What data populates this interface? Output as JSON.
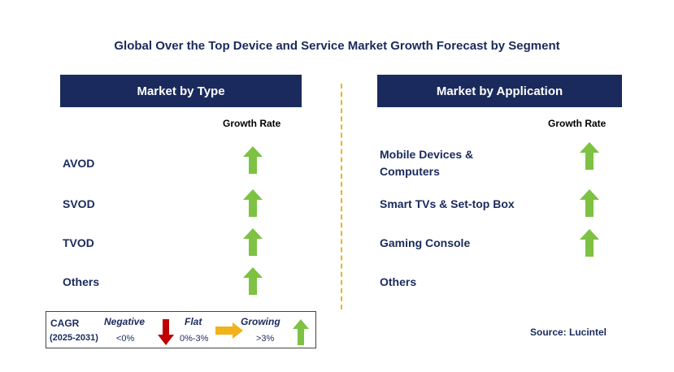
{
  "title": "Global Over the Top Device and Service Market Growth Forecast by Segment",
  "left_panel": {
    "header": "Market by Type",
    "column_header": "Growth Rate",
    "rows": [
      {
        "label": "AVOD",
        "trend": "growing"
      },
      {
        "label": "SVOD",
        "trend": "growing"
      },
      {
        "label": "TVOD",
        "trend": "growing"
      },
      {
        "label": "Others",
        "trend": "growing"
      }
    ]
  },
  "right_panel": {
    "header": "Market by Application",
    "column_header": "Growth Rate",
    "rows": [
      {
        "label": "Mobile Devices & Computers",
        "trend": "growing"
      },
      {
        "label": "Smart TVs & Set-top Box",
        "trend": "growing"
      },
      {
        "label": "Gaming Console",
        "trend": "growing"
      },
      {
        "label": "Others",
        "trend": "none"
      }
    ]
  },
  "legend": {
    "cagr_label": "CAGR",
    "period": "(2025-2031)",
    "negative_label": "Negative",
    "negative_value": "<0%",
    "flat_label": "Flat",
    "flat_value": "0%-3%",
    "growing_label": "Growing",
    "growing_value": ">3%"
  },
  "source": "Source: Lucintel",
  "colors": {
    "navy": "#1a2a5c",
    "growing": "#7dc242",
    "negative": "#c00000",
    "flat": "#f2b21b",
    "divider": "#f2b21b"
  }
}
